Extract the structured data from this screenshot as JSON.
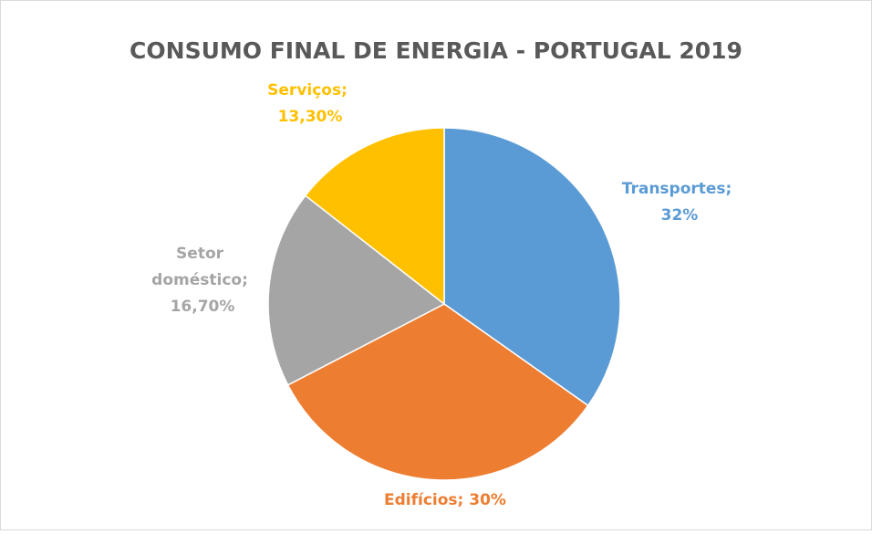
{
  "chart_data": {
    "type": "pie",
    "title": "CONSUMO FINAL DE ENERGIA - PORTUGAL 2019",
    "values": [
      32,
      30,
      16.7,
      13.3
    ],
    "value_labels": [
      "Transportes; 32%",
      "Edifícios; 30%",
      "Setor doméstico; 16,70%",
      "Serviços; 13,30%"
    ],
    "colors": [
      "#5b9bd5",
      "#ed7d31",
      "#a5a5a5",
      "#ffc000"
    ]
  }
}
